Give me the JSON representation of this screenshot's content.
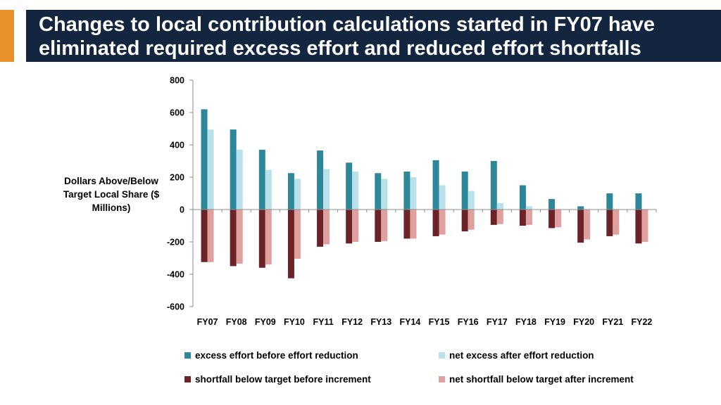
{
  "title": "Changes to local contribution calculations started in FY07 have eliminated required excess effort and reduced effort shortfalls",
  "chart_data": {
    "type": "bar",
    "ylabel": "Dollars Above/Below Target Local Share ($ Millions)",
    "ylim": [
      -600,
      800
    ],
    "yticks": [
      800,
      600,
      400,
      200,
      0,
      -200,
      -400,
      -600
    ],
    "grid": false,
    "legend_position": "bottom",
    "categories": [
      "FY07",
      "FY08",
      "FY09",
      "FY10",
      "FY11",
      "FY12",
      "FY13",
      "FY14",
      "FY15",
      "FY16",
      "FY17",
      "FY18",
      "FY19",
      "FY20",
      "FY21",
      "FY22"
    ],
    "series": [
      {
        "name": "excess effort before effort reduction",
        "color": "#2e8799",
        "values": [
          620,
          495,
          370,
          225,
          365,
          290,
          225,
          235,
          305,
          235,
          300,
          150,
          65,
          20,
          100,
          100
        ]
      },
      {
        "name": "net excess after effort reduction",
        "color": "#b9e1ea",
        "values": [
          495,
          370,
          245,
          190,
          250,
          235,
          190,
          200,
          150,
          115,
          40,
          20,
          0,
          0,
          0,
          0
        ]
      },
      {
        "name": "shortfall below target before increment",
        "color": "#6b2328",
        "values": [
          -325,
          -350,
          -360,
          -425,
          -230,
          -210,
          -200,
          -180,
          -165,
          -135,
          -95,
          -100,
          -115,
          -205,
          -165,
          -210
        ]
      },
      {
        "name": "net shortfall below target after increment",
        "color": "#e0a0a0",
        "values": [
          -325,
          -335,
          -340,
          -305,
          -215,
          -200,
          -195,
          -180,
          -155,
          -125,
          -90,
          -95,
          -110,
          -185,
          -155,
          -200
        ]
      }
    ]
  }
}
